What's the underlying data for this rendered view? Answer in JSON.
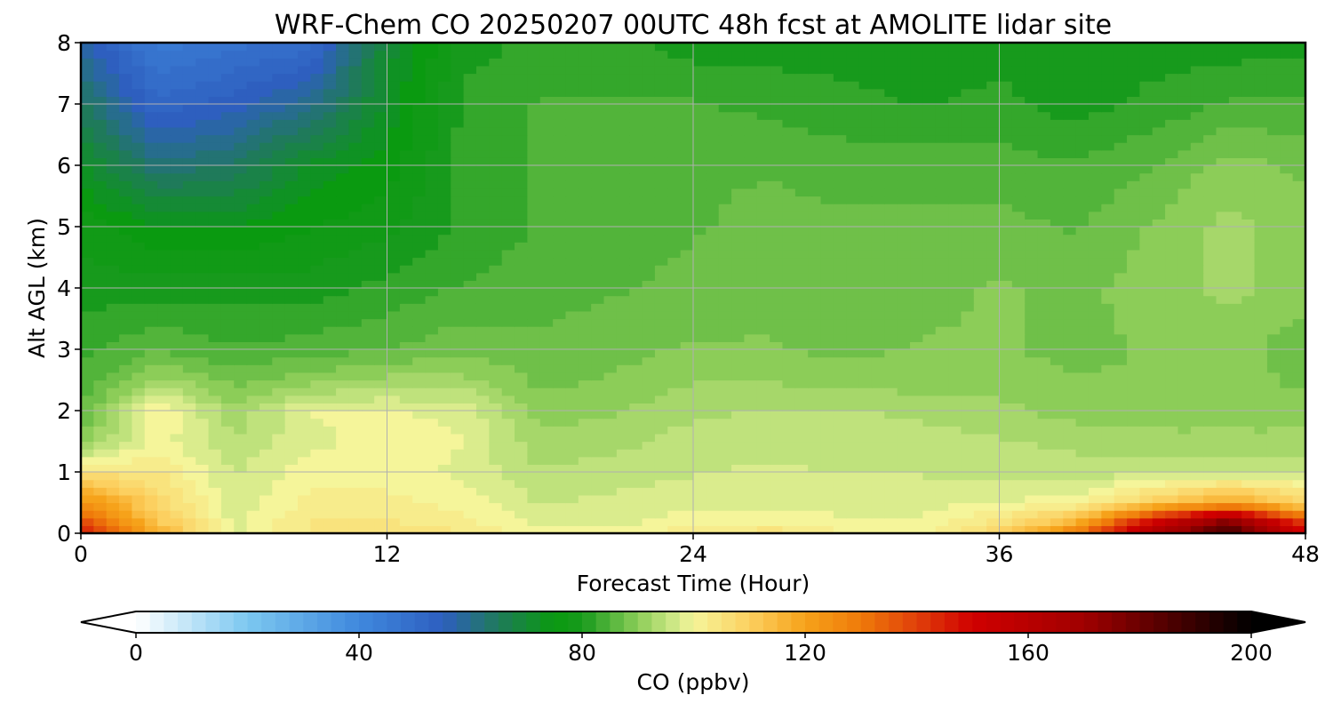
{
  "chart_data": {
    "type": "heatmap",
    "title": "WRF-Chem CO  20250207 00UTC 48h fcst at AMOLITE lidar site",
    "xlabel": "Forecast Time (Hour)",
    "ylabel": "Alt AGL (km)",
    "xlim": [
      0,
      48
    ],
    "ylim": [
      0,
      8
    ],
    "x_ticks": [
      0,
      12,
      24,
      36,
      48
    ],
    "y_ticks": [
      0,
      1,
      2,
      3,
      4,
      5,
      6,
      7,
      8
    ],
    "grid": true,
    "colorbar": {
      "label": "CO  (ppbv)",
      "range": [
        0,
        200
      ],
      "ticks": [
        0,
        40,
        80,
        120,
        160,
        200
      ],
      "extend": "both",
      "orientation": "horizontal",
      "stops": [
        [
          0,
          "#ffffff"
        ],
        [
          20,
          "#7cc8f0"
        ],
        [
          40,
          "#3f88dd"
        ],
        [
          55,
          "#2e5fbf"
        ],
        [
          65,
          "#1f7a5a"
        ],
        [
          75,
          "#0a9a10"
        ],
        [
          80,
          "#179a1c"
        ],
        [
          90,
          "#8ccd58"
        ],
        [
          97,
          "#d4ea8a"
        ],
        [
          100,
          "#f5f59a"
        ],
        [
          110,
          "#fcd060"
        ],
        [
          120,
          "#f6a21a"
        ],
        [
          130,
          "#ef7a0a"
        ],
        [
          140,
          "#e0400a"
        ],
        [
          150,
          "#d00000"
        ],
        [
          170,
          "#a00000"
        ],
        [
          185,
          "#500000"
        ],
        [
          200,
          "#000000"
        ]
      ]
    },
    "x": [
      0,
      3,
      6,
      9,
      12,
      15,
      18,
      21,
      24,
      27,
      30,
      33,
      36,
      39,
      42,
      45,
      48
    ],
    "y": [
      0,
      0.2,
      0.5,
      1,
      1.5,
      2,
      2.5,
      3,
      4,
      5,
      6,
      7,
      8
    ],
    "z": [
      [
        150,
        118,
        98,
        104,
        106,
        104,
        100,
        100,
        103,
        106,
        101,
        101,
        110,
        130,
        165,
        190,
        150
      ],
      [
        138,
        112,
        98,
        104,
        104,
        102,
        98,
        98,
        100,
        100,
        99,
        99,
        104,
        115,
        150,
        175,
        138
      ],
      [
        125,
        108,
        97,
        102,
        102,
        100,
        96,
        97,
        98,
        98,
        98,
        98,
        99,
        100,
        110,
        120,
        108
      ],
      [
        105,
        104,
        96,
        100,
        100,
        98,
        94,
        95,
        96,
        97,
        96,
        96,
        95,
        95,
        95,
        95,
        96
      ],
      [
        90,
        100,
        94,
        98,
        100,
        99,
        92,
        93,
        95,
        95,
        95,
        95,
        94,
        93,
        92,
        92,
        92
      ],
      [
        86,
        102,
        92,
        99,
        99,
        98,
        90,
        91,
        93,
        94,
        94,
        93,
        92,
        90,
        90,
        90,
        90
      ],
      [
        84,
        92,
        88,
        90,
        92,
        92,
        88,
        89,
        91,
        91,
        90,
        90,
        90,
        89,
        89,
        90,
        88
      ],
      [
        83,
        86,
        84,
        85,
        86,
        88,
        87,
        88,
        89,
        89,
        88,
        89,
        89,
        88,
        89,
        90,
        87
      ],
      [
        80,
        80,
        80,
        80,
        82,
        84,
        85,
        86,
        87,
        88,
        87,
        88,
        89,
        88,
        90,
        92,
        90
      ],
      [
        78,
        74,
        74,
        76,
        78,
        82,
        84,
        85,
        86,
        87,
        87,
        87,
        87,
        86,
        89,
        92,
        90
      ],
      [
        72,
        62,
        64,
        72,
        75,
        82,
        84,
        84,
        86,
        86,
        85,
        85,
        85,
        84,
        86,
        90,
        88
      ],
      [
        65,
        52,
        55,
        60,
        72,
        82,
        84,
        84,
        84,
        83,
        82,
        81,
        82,
        80,
        82,
        84,
        84
      ],
      [
        58,
        45,
        48,
        50,
        70,
        80,
        82,
        82,
        80,
        80,
        80,
        80,
        80,
        80,
        80,
        80,
        80
      ]
    ]
  }
}
